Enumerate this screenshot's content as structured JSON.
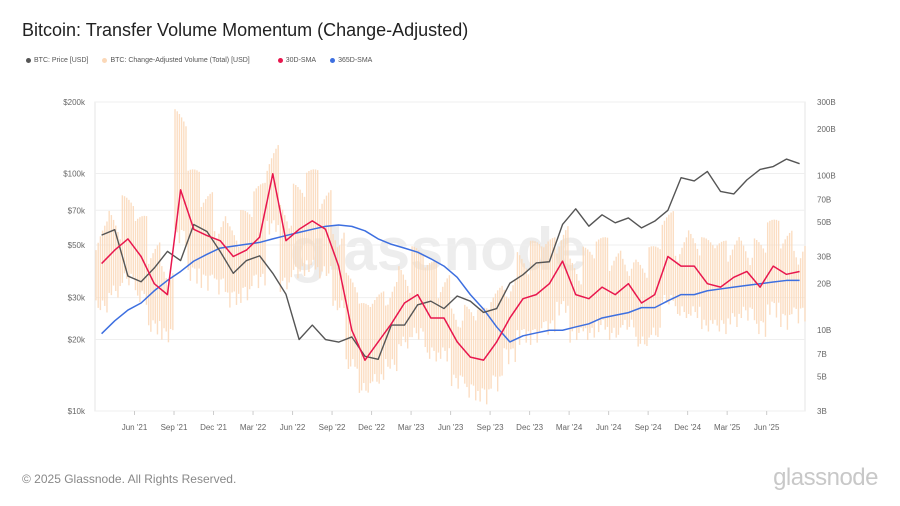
{
  "title": "Bitcoin: Transfer Volume Momentum (Change-Adjusted)",
  "footer": "© 2025 Glassnode. All Rights Reserved.",
  "brand": "glassnode",
  "watermark": "glassnode",
  "chart_data": {
    "type": "line",
    "legend_placement": "top-left",
    "series_meta": [
      {
        "name": "BTC: Price [USD]",
        "color": "#555555"
      },
      {
        "name": "BTC: Change-Adjusted Volume (Total) [USD]",
        "color": "#fbd8b8"
      },
      {
        "name": "30D-SMA",
        "color": "#e8174e"
      },
      {
        "name": "365D-SMA",
        "color": "#3d6fe0"
      }
    ],
    "x": [
      "2021-03",
      "2021-04",
      "2021-05",
      "2021-06",
      "2021-07",
      "2021-08",
      "2021-09",
      "2021-10",
      "2021-11",
      "2021-12",
      "2022-01",
      "2022-02",
      "2022-03",
      "2022-04",
      "2022-05",
      "2022-06",
      "2022-07",
      "2022-08",
      "2022-09",
      "2022-10",
      "2022-11",
      "2022-12",
      "2023-01",
      "2023-02",
      "2023-03",
      "2023-04",
      "2023-05",
      "2023-06",
      "2023-07",
      "2023-08",
      "2023-09",
      "2023-10",
      "2023-11",
      "2023-12",
      "2024-01",
      "2024-02",
      "2024-03",
      "2024-04",
      "2024-05",
      "2024-06",
      "2024-07",
      "2024-08",
      "2024-09",
      "2024-10",
      "2024-11",
      "2024-12",
      "2025-01",
      "2025-02",
      "2025-03",
      "2025-04",
      "2025-05",
      "2025-06",
      "2025-07",
      "2025-08"
    ],
    "price": [
      55000,
      58000,
      37000,
      35000,
      40000,
      47000,
      43000,
      61000,
      57000,
      47000,
      38000,
      43000,
      45000,
      38000,
      31000,
      20000,
      23000,
      20000,
      19500,
      20500,
      17000,
      16500,
      23000,
      23000,
      28000,
      29000,
      27000,
      30500,
      29000,
      26000,
      27000,
      34500,
      37500,
      42000,
      42500,
      61000,
      71000,
      60000,
      67000,
      62000,
      65000,
      59000,
      63000,
      70000,
      96000,
      93000,
      102000,
      84000,
      82000,
      94000,
      104000,
      107000,
      115000,
      110000
    ],
    "sma30": [
      27,
      33,
      39,
      30,
      20,
      17,
      81,
      45,
      41,
      38,
      30,
      33,
      40,
      103,
      38,
      45,
      51,
      45,
      26,
      10,
      6.4,
      8.4,
      11,
      15,
      17,
      12,
      12,
      8.4,
      6.7,
      6.4,
      8.4,
      12,
      16,
      17,
      20,
      28,
      17,
      16,
      19,
      17,
      20,
      15,
      17,
      30,
      26,
      26,
      20,
      19,
      22,
      24,
      19,
      26,
      23,
      24
    ],
    "sma365": [
      9.5,
      11.5,
      13.5,
      15,
      18,
      21,
      24,
      28,
      31,
      34,
      35,
      36,
      37,
      39,
      41,
      43,
      45,
      47,
      48,
      47,
      44,
      39,
      36,
      34,
      32,
      29,
      26,
      22,
      17,
      13.7,
      10.5,
      8.4,
      9.2,
      9.6,
      10,
      10,
      10.5,
      11,
      12,
      12.5,
      13,
      14,
      14,
      15.5,
      17,
      17,
      18,
      18.5,
      19,
      19.5,
      20,
      20.5,
      21,
      21
    ],
    "volume_high": [
      60,
      70,
      75,
      55,
      40,
      35,
      280,
      110,
      80,
      70,
      55,
      60,
      90,
      180,
      80,
      90,
      110,
      85,
      60,
      25,
      15,
      18,
      25,
      30,
      35,
      28,
      25,
      18,
      15,
      14,
      20,
      28,
      35,
      38,
      40,
      55,
      35,
      35,
      40,
      35,
      40,
      30,
      35,
      60,
      50,
      50,
      40,
      38,
      45,
      48,
      40,
      52,
      46,
      48
    ],
    "volume_low": [
      12,
      15,
      18,
      14,
      9,
      8,
      35,
      20,
      18,
      17,
      14,
      15,
      18,
      40,
      17,
      20,
      22,
      20,
      12,
      5,
      3.5,
      4,
      5,
      7,
      8,
      6,
      6,
      4,
      3.5,
      3.3,
      4,
      6,
      8,
      8,
      9,
      12,
      8,
      8,
      9,
      8,
      9,
      7,
      8,
      13,
      11,
      11,
      9,
      9,
      10,
      11,
      9,
      12,
      10,
      11
    ],
    "x_ticks": [
      "Jun '21",
      "Sep '21",
      "Dec '21",
      "Mar '22",
      "Jun '22",
      "Sep '22",
      "Dec '22",
      "Mar '23",
      "Jun '23",
      "Sep '23",
      "Dec '23",
      "Mar '24",
      "Jun '24",
      "Sep '24",
      "Dec '24",
      "Mar '25",
      "Jun '25"
    ],
    "y_left": {
      "scale": "log",
      "range": [
        10000,
        200000
      ],
      "ticks": [
        "$10k",
        "$20k",
        "$30k",
        "$50k",
        "$70k",
        "$100k",
        "$200k"
      ],
      "tick_values": [
        10000,
        20000,
        30000,
        50000,
        70000,
        100000,
        200000
      ]
    },
    "y_right": {
      "scale": "log",
      "range": [
        3,
        300
      ],
      "ticks": [
        "3B",
        "5B",
        "7B",
        "10B",
        "20B",
        "30B",
        "50B",
        "70B",
        "100B",
        "200B",
        "300B"
      ],
      "tick_values": [
        3,
        5,
        7,
        10,
        20,
        30,
        50,
        70,
        100,
        200,
        300
      ]
    },
    "grid": true
  }
}
